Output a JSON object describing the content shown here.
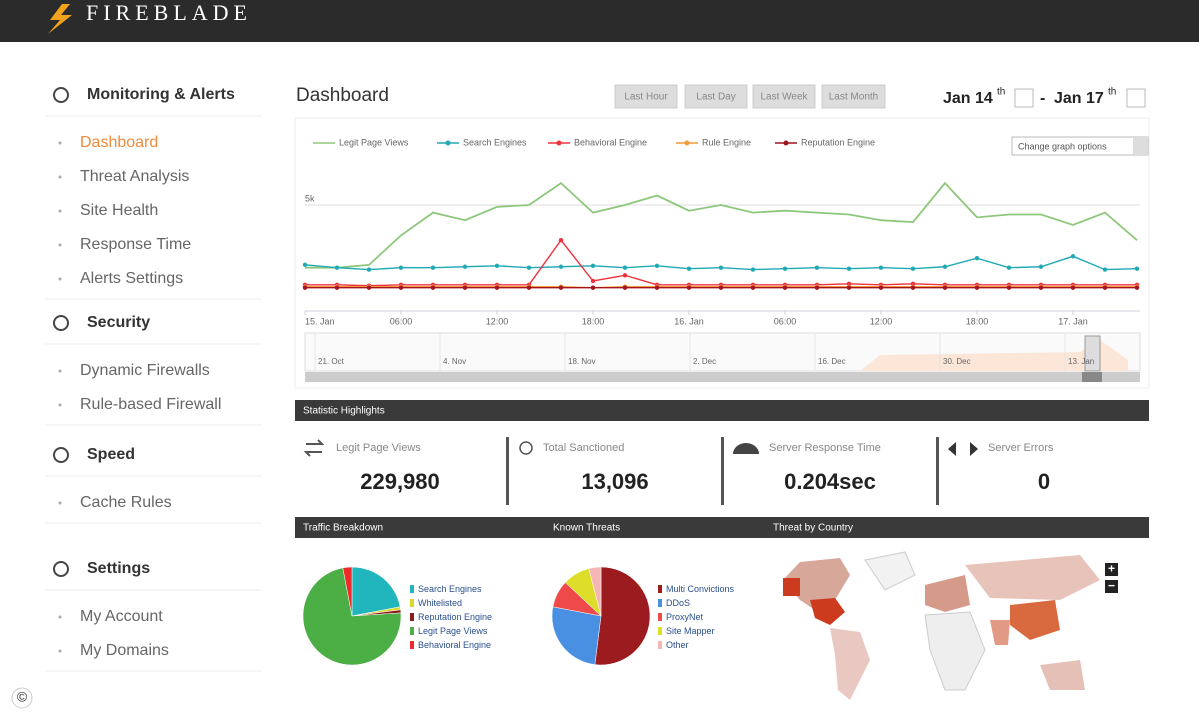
{
  "header": {
    "logo": "FIREBLADE"
  },
  "sidebar": {
    "sections": [
      {
        "title": "Monitoring & Alerts",
        "items": [
          "Dashboard",
          "Threat Analysis",
          "Site Health",
          "Response Time",
          "Alerts Settings"
        ]
      },
      {
        "title": "Security",
        "items": [
          "Dynamic Firewalls",
          "Rule-based Firewall"
        ]
      },
      {
        "title": "Speed",
        "items": [
          "Cache Rules"
        ]
      },
      {
        "title": "Settings",
        "items": [
          "My Account",
          "My Domains"
        ]
      }
    ]
  },
  "dashboard": {
    "title": "Dashboard",
    "ranges": [
      "Last Hour",
      "Last Day",
      "Last Week",
      "Last Month"
    ],
    "date_from": "Jan 14",
    "date_from_suffix": "th",
    "date_separator": "-",
    "date_to": "Jan 17",
    "date_to_suffix": "th",
    "graph_options": "Change graph options"
  },
  "line_chart": {
    "type": "line",
    "x": [
      0,
      2,
      4,
      6,
      8,
      10,
      12,
      14,
      16,
      18,
      20,
      22,
      24,
      26,
      28,
      30,
      32,
      34,
      36,
      38,
      40,
      42,
      44,
      46,
      48,
      50,
      52
    ],
    "xlim": [
      0,
      52
    ],
    "xticks": [
      {
        "value": 0,
        "label": "15. Jan"
      },
      {
        "value": 6,
        "label": "06:00"
      },
      {
        "value": 12,
        "label": "12:00"
      },
      {
        "value": 18,
        "label": "18:00"
      },
      {
        "value": 24,
        "label": "16. Jan"
      },
      {
        "value": 30,
        "label": "06:00"
      },
      {
        "value": 36,
        "label": "12:00"
      },
      {
        "value": 42,
        "label": "18:00"
      },
      {
        "value": 48,
        "label": "17. Jan"
      }
    ],
    "ylim": [
      0,
      7500
    ],
    "yticks": [
      {
        "value": 5000,
        "label": "5k"
      }
    ],
    "series": [
      {
        "name": "Legit Page Views",
        "color": "#8dc77b",
        "values": [
          1700,
          1700,
          1850,
          3400,
          4600,
          4200,
          4900,
          5000,
          6150,
          4600,
          5000,
          5500,
          4700,
          5000,
          4600,
          4700,
          4600,
          4500,
          4200,
          4100,
          6150,
          4350,
          4500,
          4500,
          3950,
          4600,
          3150
        ]
      },
      {
        "name": "Search Engines",
        "color": "#21a9b4",
        "values": [
          1850,
          1700,
          1600,
          1700,
          1700,
          1750,
          1800,
          1700,
          1750,
          1800,
          1700,
          1800,
          1650,
          1700,
          1600,
          1650,
          1700,
          1650,
          1700,
          1650,
          1750,
          2200,
          1700,
          1750,
          2300,
          1600,
          1650
        ]
      },
      {
        "name": "Behavioral Engine",
        "color": "#f0303a",
        "values": [
          800,
          800,
          750,
          800,
          800,
          800,
          800,
          800,
          3150,
          1000,
          1300,
          800,
          800,
          800,
          800,
          800,
          800,
          850,
          800,
          850,
          800,
          800,
          800,
          800,
          800,
          800,
          800
        ]
      },
      {
        "name": "Rule Engine",
        "color": "#f59a3a",
        "values": [
          700,
          700,
          700,
          700,
          700,
          700,
          700,
          700,
          700,
          650,
          700,
          700,
          700,
          700,
          700,
          700,
          700,
          700,
          700,
          700,
          700,
          700,
          700,
          700,
          700,
          700,
          700
        ]
      },
      {
        "name": "Reputation Engine",
        "color": "#a2141e",
        "values": [
          650,
          650,
          650,
          650,
          650,
          650,
          650,
          650,
          650,
          650,
          650,
          650,
          650,
          650,
          650,
          650,
          650,
          650,
          650,
          650,
          650,
          650,
          650,
          650,
          650,
          650,
          650
        ]
      }
    ],
    "navigator_labels": [
      "21. Oct",
      "4. Nov",
      "18. Nov",
      "2. Dec",
      "16. Dec",
      "30. Dec",
      "13. Jan"
    ]
  },
  "statistics": {
    "title": "Statistic Highlights",
    "items": [
      {
        "label": "Legit Page Views",
        "value": "229,980"
      },
      {
        "label": "Total Sanctioned",
        "value": "13,096"
      },
      {
        "label": "Server Response Time",
        "value": "0.204sec"
      },
      {
        "label": "Server Errors",
        "value": "0"
      }
    ]
  },
  "panels": [
    "Traffic Breakdown",
    "Known Threats",
    "Threat by Country"
  ],
  "traffic_pie": {
    "type": "pie",
    "series": [
      {
        "name": "Search Engines",
        "color": "#21b5bd",
        "values": [
          22
        ]
      },
      {
        "name": "Whitelisted",
        "color": "#d7d92c",
        "values": [
          1
        ]
      },
      {
        "name": "Reputation Engine",
        "color": "#8c1c1c",
        "values": [
          1
        ]
      },
      {
        "name": "Legit Page Views",
        "color": "#4caf45",
        "values": [
          73
        ]
      },
      {
        "name": "Behavioral Engine",
        "color": "#ee2b2b",
        "values": [
          3
        ]
      }
    ]
  },
  "threats_pie": {
    "type": "pie",
    "series": [
      {
        "name": "Multi Convictions",
        "color": "#9b1b1e",
        "values": [
          52
        ]
      },
      {
        "name": "DDoS",
        "color": "#4a90e2",
        "values": [
          26
        ]
      },
      {
        "name": "ProxyNet",
        "color": "#ef4a4a",
        "values": [
          9
        ]
      },
      {
        "name": "Site Mapper",
        "color": "#dede2a",
        "values": [
          9
        ]
      },
      {
        "name": "Other",
        "color": "#f6b6b6",
        "values": [
          4
        ]
      }
    ]
  },
  "map_controls": [
    "+",
    "−"
  ],
  "copyright": "©"
}
